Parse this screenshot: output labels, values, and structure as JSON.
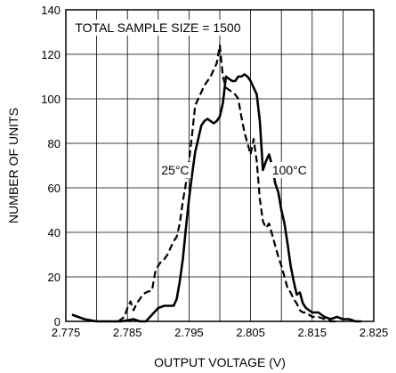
{
  "chart_data": {
    "type": "line",
    "xlabel": "OUTPUT VOLTAGE (V)",
    "ylabel": "NUMBER OF UNITS",
    "xlim": [
      2.775,
      2.825
    ],
    "ylim": [
      0,
      140
    ],
    "xticks": [
      2.775,
      2.785,
      2.795,
      2.805,
      2.815,
      2.825
    ],
    "xtick_labels": [
      "2.775",
      "2.785",
      "2.795",
      "2.805",
      "2.815",
      "2.825"
    ],
    "yticks": [
      0,
      20,
      40,
      60,
      80,
      100,
      120,
      140
    ],
    "ytick_labels": [
      "0",
      "20",
      "40",
      "60",
      "80",
      "100",
      "120",
      "140"
    ],
    "xgrid": [
      2.775,
      2.78,
      2.785,
      2.79,
      2.795,
      2.8,
      2.805,
      2.81,
      2.815,
      2.82,
      2.825
    ],
    "ygrid": [
      0,
      20,
      40,
      60,
      80,
      100,
      120,
      140
    ],
    "grid": true,
    "annotations": {
      "sample_size": "TOTAL SAMPLE SIZE = 1500",
      "label_25": "25°C",
      "label_100": "100°C"
    },
    "series": [
      {
        "label_key": "25°C",
        "style": "dashed",
        "x": [
          2.7835,
          2.7845,
          2.785,
          2.7855,
          2.786,
          2.7865,
          2.787,
          2.7875,
          2.788,
          2.789,
          2.7895,
          2.79,
          2.7905,
          2.791,
          2.7915,
          2.792,
          2.7925,
          2.793,
          2.7935,
          2.794,
          2.7945,
          2.795,
          2.7955,
          2.796,
          2.7965,
          2.797,
          2.7975,
          2.798,
          2.7985,
          2.799,
          2.7995,
          2.8,
          2.8005,
          2.801,
          2.8015,
          2.802,
          2.8025,
          2.803,
          2.8035,
          2.804,
          2.8045,
          2.805,
          2.8055,
          2.806,
          2.8065,
          2.807,
          2.8075,
          2.808,
          2.8085,
          2.809,
          2.8095,
          2.81,
          2.8105,
          2.811,
          2.8115,
          2.812,
          2.8125,
          2.813,
          2.8135,
          2.814,
          2.815,
          2.816,
          2.817,
          2.818,
          2.819
        ],
        "y": [
          0,
          2,
          6,
          9,
          5,
          8,
          10,
          12,
          13,
          14,
          22,
          25,
          27,
          28,
          30,
          33,
          36,
          38,
          44,
          54,
          62,
          72,
          84,
          97,
          100,
          103,
          106,
          108,
          110,
          113,
          116,
          124,
          110,
          105,
          104,
          103,
          102,
          100,
          92,
          85,
          80,
          75,
          82,
          72,
          55,
          45,
          42,
          44,
          39,
          34,
          29,
          25,
          20,
          15,
          13,
          10,
          8,
          5,
          4,
          4,
          2,
          2,
          1,
          0,
          0
        ]
      },
      {
        "label_key": "100°C",
        "style": "solid",
        "x": [
          2.776,
          2.778,
          2.78,
          2.782,
          2.784,
          2.786,
          2.787,
          2.788,
          2.789,
          2.79,
          2.791,
          2.792,
          2.7925,
          2.793,
          2.7935,
          2.794,
          2.7945,
          2.795,
          2.7955,
          2.796,
          2.7965,
          2.797,
          2.7975,
          2.798,
          2.7985,
          2.799,
          2.7995,
          2.8,
          2.8005,
          2.801,
          2.8015,
          2.802,
          2.8025,
          2.803,
          2.8035,
          2.804,
          2.8045,
          2.805,
          2.8055,
          2.806,
          2.8065,
          2.807,
          2.8075,
          2.808,
          2.8085,
          2.809,
          2.8095,
          2.81,
          2.8105,
          2.811,
          2.8115,
          2.812,
          2.8125,
          2.813,
          2.8135,
          2.814,
          2.815,
          2.816,
          2.817,
          2.818,
          2.819,
          2.82,
          2.821,
          2.822,
          2.823
        ],
        "y": [
          3,
          1,
          0,
          0,
          0,
          1,
          0,
          0,
          3,
          6,
          7,
          7,
          7,
          10,
          18,
          28,
          42,
          55,
          66,
          76,
          82,
          88,
          90,
          91,
          90,
          89,
          90,
          92,
          98,
          110,
          109,
          108,
          108,
          110,
          110,
          111,
          110,
          108,
          105,
          102,
          90,
          68,
          72,
          75,
          70,
          62,
          58,
          50,
          44,
          35,
          25,
          18,
          12,
          13,
          8,
          6,
          4,
          4,
          2,
          1,
          2,
          1,
          1,
          0,
          0
        ]
      }
    ]
  }
}
